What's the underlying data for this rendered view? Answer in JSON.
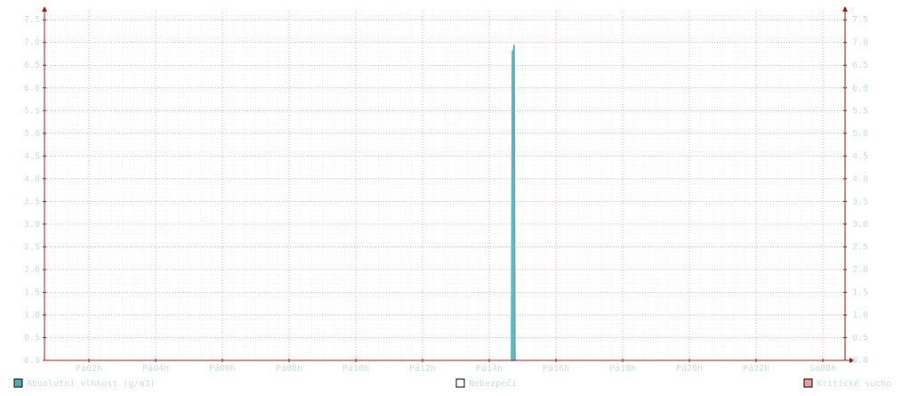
{
  "chart_data": {
    "type": "area",
    "x": [
      14.667,
      14.693,
      14.72,
      14.747,
      14.773
    ],
    "series": [
      {
        "name": "Absolutní vlhkost (g/m3)",
        "color": "#54aab5",
        "values": [
          0,
          6.8,
          6.8,
          6.95,
          0
        ]
      }
    ],
    "legend_extra": [
      {
        "name": "Nebezpečí",
        "color": "#ffffff"
      },
      {
        "name": "Kritické sucho",
        "color": "#e8a0a0"
      }
    ],
    "xlim": [
      0.667,
      24.667
    ],
    "xticks": [
      {
        "value": 2,
        "label": "Pá02h"
      },
      {
        "value": 4,
        "label": "Pá04h"
      },
      {
        "value": 6,
        "label": "Pá06h"
      },
      {
        "value": 8,
        "label": "Pá08h"
      },
      {
        "value": 10,
        "label": "Pá10h"
      },
      {
        "value": 12,
        "label": "Pá12h"
      },
      {
        "value": 14,
        "label": "Pá14h"
      },
      {
        "value": 16,
        "label": "Pá16h"
      },
      {
        "value": 18,
        "label": "Pá18h"
      },
      {
        "value": 20,
        "label": "Pá20h"
      },
      {
        "value": 22,
        "label": "Pá22h"
      },
      {
        "value": 24,
        "label": "So00h"
      }
    ],
    "ylim": [
      0,
      7.7
    ],
    "yticks": [
      {
        "value": 0,
        "label": "0.0"
      },
      0.5,
      {
        "value": 1,
        "label": "1.0"
      },
      1.5,
      {
        "value": 2,
        "label": "2.0"
      },
      2.5,
      {
        "value": 3,
        "label": "3.0"
      },
      3.5,
      {
        "value": 4,
        "label": "4.0"
      },
      4.5,
      {
        "value": 5,
        "label": "5.0"
      },
      5.5,
      {
        "value": 6,
        "label": "6.0"
      },
      6.5,
      {
        "value": 7,
        "label": "7.0"
      },
      7.5
    ],
    "grid": true
  }
}
